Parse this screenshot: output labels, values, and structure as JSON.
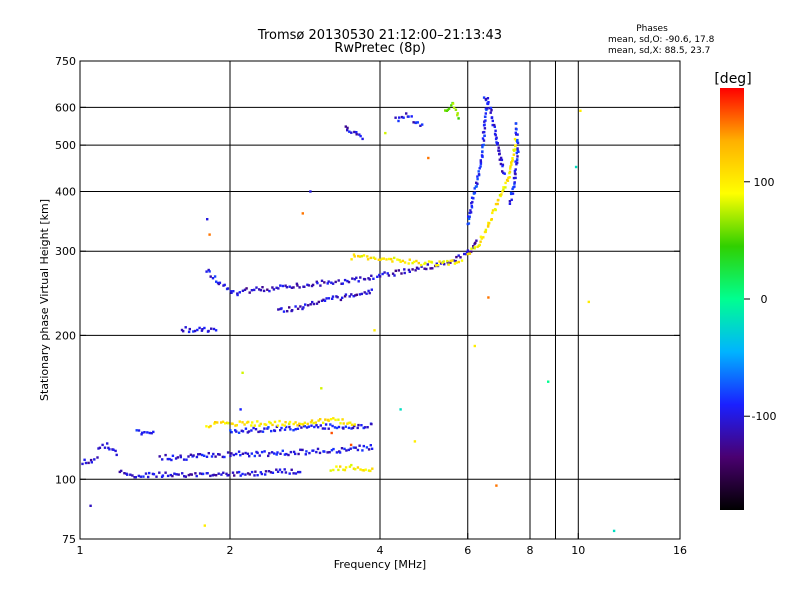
{
  "chart_data": {
    "type": "scatter",
    "title": "Tromsø 20130530 21:12:00–21:13:43",
    "subtitle": "RwPretec (8p)",
    "xlabel": "Frequency [MHz]",
    "ylabel": "Stationary phase Virtual Height [km]",
    "x_scale": "log",
    "y_scale": "log",
    "xlim": [
      1,
      16
    ],
    "ylim": [
      75,
      750
    ],
    "x_ticks": [
      1,
      2,
      4,
      6,
      8,
      10,
      16
    ],
    "x_minor_ticks": [
      9
    ],
    "y_ticks": [
      75,
      100,
      200,
      300,
      400,
      500,
      600,
      750
    ],
    "x_grid": [
      2,
      4,
      6,
      8,
      10
    ],
    "y_grid": [
      100,
      200,
      300,
      400,
      500,
      600
    ],
    "grid": true,
    "stats": {
      "heading": "Phases",
      "line_o": "mean, sd,O:  -90.6, 17.8",
      "line_x": "mean, sd,X:  88.5, 23.7"
    },
    "colorbar": {
      "label": "[deg]",
      "range": [
        -180,
        180
      ],
      "ticks": [
        100,
        0,
        -100
      ],
      "colors": [
        "#000000",
        "#4a0070",
        "#1a20ff",
        "#00b4ff",
        "#00ff90",
        "#30d000",
        "#ffff00",
        "#ffb000",
        "#ff0000"
      ]
    },
    "traces": [
      {
        "x": [
          1.0,
          1.05,
          1.09
        ],
        "y": [
          109,
          109,
          111
        ],
        "phase": -110
      },
      {
        "x": [
          1.09,
          1.13,
          1.17,
          1.2
        ],
        "y": [
          117,
          118,
          115,
          113
        ],
        "phase": -100
      },
      {
        "x": [
          1.2,
          1.3,
          1.5,
          1.7,
          2.0,
          2.3,
          2.6,
          2.8
        ],
        "y": [
          103,
          102,
          102,
          102,
          103,
          103,
          104,
          104
        ],
        "phase": -105
      },
      {
        "x": [
          1.45,
          1.6,
          1.8,
          2.1,
          2.4,
          2.8,
          3.3,
          3.9
        ],
        "y": [
          111,
          111,
          112,
          113,
          113,
          114,
          115,
          117
        ],
        "phase": -100
      },
      {
        "x": [
          2.0,
          2.3,
          2.7,
          3.1,
          3.6,
          3.9
        ],
        "y": [
          126,
          127,
          128,
          129,
          128,
          130
        ],
        "phase": -95
      },
      {
        "x": [
          1.3,
          1.36,
          1.42
        ],
        "y": [
          126,
          124,
          125
        ],
        "phase": -95
      },
      {
        "x": [
          1.6,
          1.7,
          1.8,
          1.9
        ],
        "y": [
          206,
          205,
          205,
          204
        ],
        "phase": -100
      },
      {
        "x": [
          1.8,
          1.85,
          1.9,
          2.0,
          2.1
        ],
        "y": [
          273,
          266,
          258,
          248,
          245
        ],
        "phase": -100
      },
      {
        "x": [
          2.1,
          2.4,
          2.8,
          3.2,
          3.7,
          4.1,
          4.6,
          5.0,
          5.5,
          6.0,
          6.3
        ],
        "y": [
          248,
          250,
          255,
          258,
          262,
          268,
          273,
          278,
          285,
          295,
          318
        ],
        "phase": -110
      },
      {
        "x": [
          2.5,
          2.7,
          2.9,
          3.2,
          3.5,
          3.9
        ],
        "y": [
          225,
          228,
          232,
          238,
          243,
          248
        ],
        "phase": -110
      },
      {
        "x": [
          3.5,
          4.0,
          4.5,
          5.0,
          5.5,
          5.9
        ],
        "y": [
          292,
          290,
          285,
          283,
          283,
          288
        ],
        "phase": 100
      },
      {
        "x": [
          6.0,
          6.3,
          6.6,
          6.9,
          7.2,
          7.4,
          7.5
        ],
        "y": [
          295,
          310,
          340,
          380,
          420,
          470,
          520
        ],
        "phase": 100
      },
      {
        "x": [
          6.0,
          6.2,
          6.4,
          6.5,
          6.6
        ],
        "y": [
          340,
          400,
          470,
          560,
          630
        ],
        "phase": -90
      },
      {
        "x": [
          6.5,
          6.7,
          6.9,
          7.1
        ],
        "y": [
          630,
          580,
          500,
          430
        ],
        "phase": -100
      },
      {
        "x": [
          7.3,
          7.45,
          7.55,
          7.5
        ],
        "y": [
          380,
          420,
          480,
          560
        ],
        "phase": -95
      },
      {
        "x": [
          3.4,
          3.6,
          3.7
        ],
        "y": [
          545,
          525,
          510
        ],
        "phase": -105
      },
      {
        "x": [
          4.3,
          4.5,
          4.7,
          4.9
        ],
        "y": [
          565,
          580,
          560,
          545
        ],
        "phase": -100
      },
      {
        "x": [
          5.4,
          5.6,
          5.8
        ],
        "y": [
          590,
          610,
          570
        ],
        "phase": 60
      },
      {
        "x": [
          3.2,
          3.5,
          3.9
        ],
        "y": [
          105,
          106,
          104
        ],
        "phase": 100
      },
      {
        "x": [
          1.8,
          2.2,
          2.7,
          3.2,
          3.6
        ],
        "y": [
          130,
          131,
          131,
          133,
          131
        ],
        "phase": 100
      }
    ],
    "scatter_points": [
      {
        "x": 1.05,
        "y": 88,
        "phase": -110
      },
      {
        "x": 1.8,
        "y": 350,
        "phase": -100
      },
      {
        "x": 1.82,
        "y": 325,
        "phase": 150
      },
      {
        "x": 2.8,
        "y": 360,
        "phase": 150
      },
      {
        "x": 2.9,
        "y": 400,
        "phase": -100
      },
      {
        "x": 2.1,
        "y": 140,
        "phase": -90
      },
      {
        "x": 2.12,
        "y": 167,
        "phase": 80
      },
      {
        "x": 3.05,
        "y": 155,
        "phase": 80
      },
      {
        "x": 1.78,
        "y": 80,
        "phase": 100
      },
      {
        "x": 3.9,
        "y": 205,
        "phase": 100
      },
      {
        "x": 4.1,
        "y": 530,
        "phase": 80
      },
      {
        "x": 5.0,
        "y": 470,
        "phase": 150
      },
      {
        "x": 6.6,
        "y": 240,
        "phase": 150
      },
      {
        "x": 6.85,
        "y": 97,
        "phase": 150
      },
      {
        "x": 8.7,
        "y": 160,
        "phase": 0
      },
      {
        "x": 9.9,
        "y": 450,
        "phase": -20
      },
      {
        "x": 10.5,
        "y": 235,
        "phase": 100
      },
      {
        "x": 11.8,
        "y": 78,
        "phase": -20
      },
      {
        "x": 10.1,
        "y": 590,
        "phase": 100
      },
      {
        "x": 4.4,
        "y": 140,
        "phase": -20
      },
      {
        "x": 4.7,
        "y": 120,
        "phase": 100
      },
      {
        "x": 3.2,
        "y": 125,
        "phase": 160
      },
      {
        "x": 3.5,
        "y": 118,
        "phase": 160
      },
      {
        "x": 6.2,
        "y": 190,
        "phase": 100
      }
    ]
  }
}
